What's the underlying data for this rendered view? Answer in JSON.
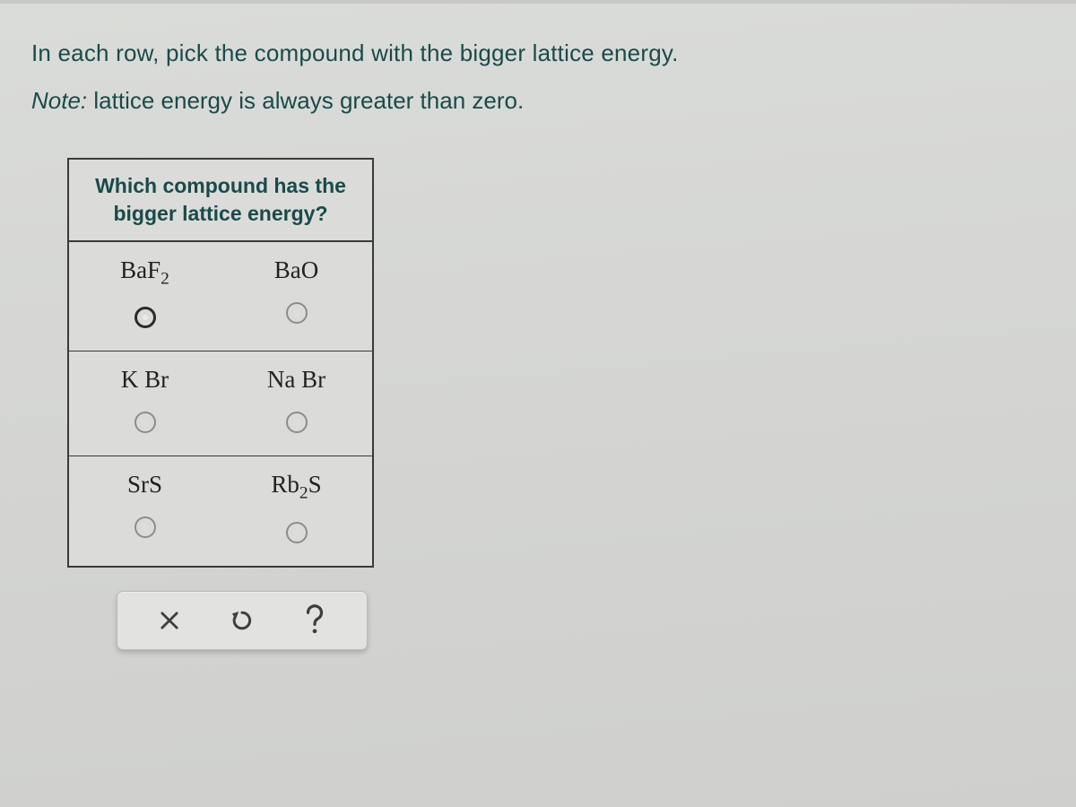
{
  "instructions": {
    "main": "In each row, pick the compound with the bigger lattice energy.",
    "note_label": "Note:",
    "note_text": " lattice energy is always greater than zero."
  },
  "table": {
    "header_line1": "Which compound has the",
    "header_line2": "bigger lattice energy?",
    "rows": [
      {
        "left_html": "BaF<sub>2</sub>",
        "right_html": "BaO",
        "left_radio_style": "strong",
        "right_radio_style": "faint"
      },
      {
        "left_html": "K Br",
        "right_html": "Na Br",
        "left_radio_style": "faint",
        "right_radio_style": "faint"
      },
      {
        "left_html": "SrS",
        "right_html": "Rb<sub>2</sub>S",
        "left_radio_style": "faint",
        "right_radio_style": "faint"
      }
    ]
  },
  "toolbar": {
    "clear_icon": "close-icon",
    "undo_icon": "undo-icon",
    "help_icon": "help-icon"
  },
  "colors": {
    "page_bg": "#d4d5d3",
    "text_teal": "#1a4a4a",
    "border_dark": "#3a3a3a",
    "radio_faint": "#8a8d8a",
    "toolbar_bg": "#e2e3e0"
  }
}
